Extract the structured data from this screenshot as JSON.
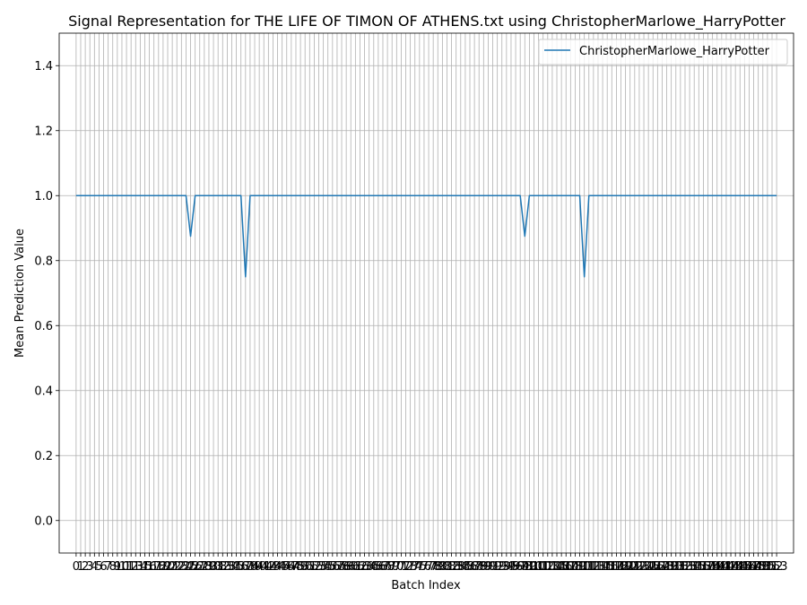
{
  "chart_data": {
    "type": "line",
    "title": "Signal Representation for THE LIFE OF TIMON OF ATHENS.txt using ChristopherMarlowe_HarryPotter",
    "xlabel": "Batch Index",
    "ylabel": "Mean Prediction Value",
    "xlim": [
      -3.7,
      156.7
    ],
    "ylim": [
      -0.1,
      1.5
    ],
    "yticks": [
      0.0,
      0.2,
      0.4,
      0.6,
      0.8,
      1.0,
      1.2,
      1.4
    ],
    "ytick_labels": [
      "0.0",
      "0.2",
      "0.4",
      "0.6",
      "0.8",
      "1.0",
      "1.2",
      "1.4"
    ],
    "x_label_start": 0,
    "x_label_end": 153,
    "grid": true,
    "legend_position": "upper right",
    "series": [
      {
        "name": "ChristopherMarlowe_HarryPotter",
        "color": "#1f77b4",
        "default_value": 1.0,
        "deviations": [
          {
            "x": 25,
            "y": 0.875
          },
          {
            "x": 37,
            "y": 0.75
          },
          {
            "x": 98,
            "y": 0.875
          },
          {
            "x": 111,
            "y": 0.75
          }
        ]
      }
    ]
  }
}
